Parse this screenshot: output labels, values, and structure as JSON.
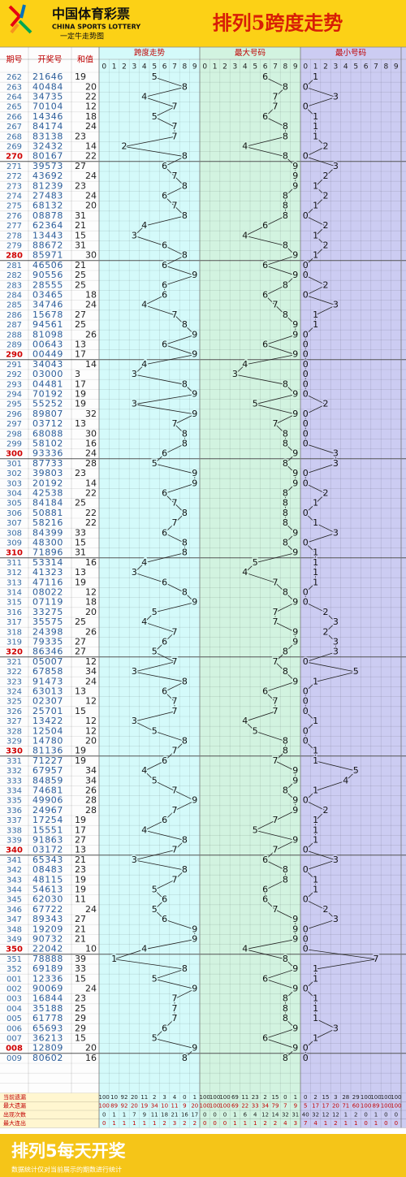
{
  "header": {
    "logo_cn": "中国体育彩票",
    "logo_en": "CHINA SPORTS LOTTERY",
    "logo_sub": "一定牛走势图",
    "title": "排列5跨度走势"
  },
  "table": {
    "columns": [
      "期号",
      "开奖号",
      "和值"
    ],
    "groups": [
      "跨度走势",
      "最大号码",
      "最小号码"
    ],
    "digits": [
      0,
      1,
      2,
      3,
      4,
      5,
      6,
      7,
      8,
      9
    ],
    "rows": [
      [
        "262",
        "21646",
        19,
        5,
        6,
        1
      ],
      [
        "263",
        "40484",
        20,
        8,
        8,
        0
      ],
      [
        "264",
        "34735",
        22,
        4,
        7,
        3
      ],
      [
        "265",
        "70104",
        12,
        7,
        7,
        0
      ],
      [
        "266",
        "14346",
        18,
        5,
        6,
        1
      ],
      [
        "267",
        "84174",
        24,
        7,
        8,
        1
      ],
      [
        "268",
        "83138",
        23,
        7,
        8,
        1
      ],
      [
        "269",
        "32432",
        14,
        2,
        4,
        2
      ],
      [
        "270",
        "80167",
        22,
        8,
        8,
        0
      ],
      [
        "271",
        "39573",
        27,
        6,
        9,
        3
      ],
      [
        "272",
        "43692",
        24,
        7,
        9,
        2
      ],
      [
        "273",
        "81239",
        23,
        8,
        9,
        1
      ],
      [
        "274",
        "27483",
        24,
        6,
        8,
        2
      ],
      [
        "275",
        "68132",
        20,
        7,
        8,
        1
      ],
      [
        "276",
        "08878",
        31,
        8,
        8,
        0
      ],
      [
        "277",
        "62364",
        21,
        4,
        6,
        2
      ],
      [
        "278",
        "13443",
        15,
        3,
        4,
        1
      ],
      [
        "279",
        "88672",
        31,
        6,
        8,
        2
      ],
      [
        "280",
        "85971",
        30,
        8,
        9,
        1
      ],
      [
        "281",
        "46506",
        21,
        6,
        6,
        0
      ],
      [
        "282",
        "90556",
        25,
        9,
        9,
        0
      ],
      [
        "283",
        "28555",
        25,
        6,
        8,
        2
      ],
      [
        "284",
        "03465",
        18,
        6,
        6,
        0
      ],
      [
        "285",
        "34746",
        24,
        4,
        7,
        3
      ],
      [
        "286",
        "15678",
        27,
        7,
        8,
        1
      ],
      [
        "287",
        "94561",
        25,
        8,
        9,
        1
      ],
      [
        "288",
        "81098",
        26,
        9,
        9,
        0
      ],
      [
        "289",
        "00643",
        13,
        6,
        6,
        0
      ],
      [
        "290",
        "00449",
        17,
        9,
        9,
        0
      ],
      [
        "291",
        "34043",
        14,
        4,
        4,
        0
      ],
      [
        "292",
        "03000",
        3,
        3,
        3,
        0
      ],
      [
        "293",
        "04481",
        17,
        8,
        8,
        0
      ],
      [
        "294",
        "70192",
        19,
        9,
        9,
        0
      ],
      [
        "295",
        "55252",
        19,
        3,
        5,
        2
      ],
      [
        "296",
        "89807",
        32,
        9,
        9,
        0
      ],
      [
        "297",
        "03712",
        13,
        7,
        7,
        0
      ],
      [
        "298",
        "68088",
        30,
        8,
        8,
        0
      ],
      [
        "299",
        "58102",
        16,
        8,
        8,
        0
      ],
      [
        "300",
        "93336",
        24,
        6,
        9,
        3
      ],
      [
        "301",
        "87733",
        28,
        5,
        8,
        3
      ],
      [
        "302",
        "39803",
        23,
        9,
        9,
        0
      ],
      [
        "303",
        "20192",
        14,
        9,
        9,
        0
      ],
      [
        "304",
        "42538",
        22,
        6,
        8,
        2
      ],
      [
        "305",
        "84184",
        25,
        7,
        8,
        1
      ],
      [
        "306",
        "50881",
        22,
        8,
        8,
        0
      ],
      [
        "307",
        "58216",
        22,
        7,
        8,
        1
      ],
      [
        "308",
        "84399",
        33,
        6,
        9,
        3
      ],
      [
        "309",
        "48300",
        15,
        8,
        8,
        0
      ],
      [
        "310",
        "71896",
        31,
        8,
        9,
        1
      ],
      [
        "311",
        "53314",
        16,
        4,
        5,
        1
      ],
      [
        "312",
        "41323",
        13,
        3,
        4,
        1
      ],
      [
        "313",
        "47116",
        19,
        6,
        7,
        1
      ],
      [
        "314",
        "08022",
        12,
        8,
        8,
        0
      ],
      [
        "315",
        "07119",
        18,
        9,
        9,
        0
      ],
      [
        "316",
        "33275",
        20,
        5,
        7,
        2
      ],
      [
        "317",
        "35575",
        25,
        4,
        7,
        3
      ],
      [
        "318",
        "24398",
        26,
        7,
        9,
        2
      ],
      [
        "319",
        "79335",
        27,
        6,
        9,
        3
      ],
      [
        "320",
        "86346",
        27,
        5,
        8,
        3
      ],
      [
        "321",
        "05007",
        12,
        7,
        7,
        0
      ],
      [
        "322",
        "67858",
        34,
        3,
        8,
        5
      ],
      [
        "323",
        "91473",
        24,
        8,
        9,
        1
      ],
      [
        "324",
        "63013",
        13,
        6,
        6,
        0
      ],
      [
        "325",
        "02307",
        12,
        7,
        7,
        0
      ],
      [
        "326",
        "25701",
        15,
        7,
        7,
        0
      ],
      [
        "327",
        "13422",
        12,
        3,
        4,
        1
      ],
      [
        "328",
        "12504",
        12,
        5,
        5,
        0
      ],
      [
        "329",
        "14780",
        20,
        8,
        8,
        0
      ],
      [
        "330",
        "81136",
        19,
        7,
        8,
        1
      ],
      [
        "331",
        "71227",
        19,
        6,
        7,
        1
      ],
      [
        "332",
        "67957",
        34,
        4,
        9,
        5
      ],
      [
        "333",
        "84859",
        34,
        5,
        9,
        4
      ],
      [
        "334",
        "74681",
        26,
        7,
        8,
        1
      ],
      [
        "335",
        "49906",
        28,
        9,
        9,
        0
      ],
      [
        "336",
        "24967",
        28,
        7,
        9,
        2
      ],
      [
        "337",
        "17254",
        19,
        6,
        7,
        1
      ],
      [
        "338",
        "15551",
        17,
        4,
        5,
        1
      ],
      [
        "339",
        "91863",
        27,
        8,
        9,
        1
      ],
      [
        "340",
        "03172",
        13,
        7,
        7,
        0
      ],
      [
        "341",
        "65343",
        21,
        3,
        6,
        3
      ],
      [
        "342",
        "08483",
        23,
        8,
        8,
        0
      ],
      [
        "343",
        "48115",
        19,
        7,
        8,
        1
      ],
      [
        "344",
        "54613",
        19,
        5,
        6,
        1
      ],
      [
        "345",
        "62030",
        11,
        6,
        6,
        0
      ],
      [
        "346",
        "67722",
        24,
        5,
        7,
        2
      ],
      [
        "347",
        "89343",
        27,
        6,
        9,
        3
      ],
      [
        "348",
        "19209",
        21,
        9,
        9,
        0
      ],
      [
        "349",
        "90732",
        21,
        9,
        9,
        0
      ],
      [
        "350",
        "22042",
        10,
        4,
        4,
        0
      ],
      [
        "351",
        "78888",
        39,
        1,
        8,
        7
      ],
      [
        "352",
        "69189",
        33,
        8,
        9,
        1
      ],
      [
        "001",
        "12336",
        15,
        5,
        6,
        1
      ],
      [
        "002",
        "90069",
        24,
        9,
        9,
        0
      ],
      [
        "003",
        "16844",
        23,
        7,
        8,
        1
      ],
      [
        "004",
        "35188",
        25,
        7,
        8,
        1
      ],
      [
        "005",
        "61778",
        29,
        7,
        8,
        1
      ],
      [
        "006",
        "65693",
        29,
        6,
        9,
        3
      ],
      [
        "007",
        "36213",
        15,
        5,
        6,
        1
      ],
      [
        "008",
        "12809",
        20,
        9,
        9,
        0
      ],
      [
        "009",
        "80602",
        16,
        8,
        8,
        0
      ]
    ],
    "stats": [
      {
        "label": "当前遗漏",
        "values": [
          100,
          10,
          92,
          20,
          11,
          2,
          3,
          4,
          0,
          1,
          100,
          100,
          100,
          69,
          11,
          23,
          2,
          15,
          0,
          1,
          0,
          2,
          15,
          3,
          28,
          29,
          100,
          100,
          100,
          100
        ]
      },
      {
        "label": "最大遗漏",
        "values": [
          100,
          89,
          92,
          20,
          19,
          34,
          10,
          11,
          9,
          20,
          100,
          100,
          100,
          69,
          22,
          33,
          34,
          79,
          7,
          9,
          5,
          17,
          17,
          20,
          71,
          60,
          100,
          89,
          100,
          100
        ]
      },
      {
        "label": "出现次数",
        "values": [
          0,
          1,
          1,
          7,
          9,
          11,
          18,
          21,
          16,
          17,
          0,
          0,
          0,
          1,
          6,
          4,
          12,
          14,
          32,
          31,
          40,
          32,
          12,
          12,
          1,
          2,
          0,
          1,
          0,
          0
        ]
      },
      {
        "label": "最大连出",
        "values": [
          0,
          1,
          1,
          1,
          1,
          1,
          2,
          3,
          2,
          2,
          0,
          0,
          0,
          1,
          1,
          1,
          2,
          2,
          4,
          3,
          7,
          4,
          1,
          2,
          1,
          1,
          0,
          1,
          0,
          0
        ]
      }
    ]
  },
  "footer": {
    "title": "排列5每天开奖",
    "note": "数据统计仅对当前展示的期数进行统计"
  }
}
